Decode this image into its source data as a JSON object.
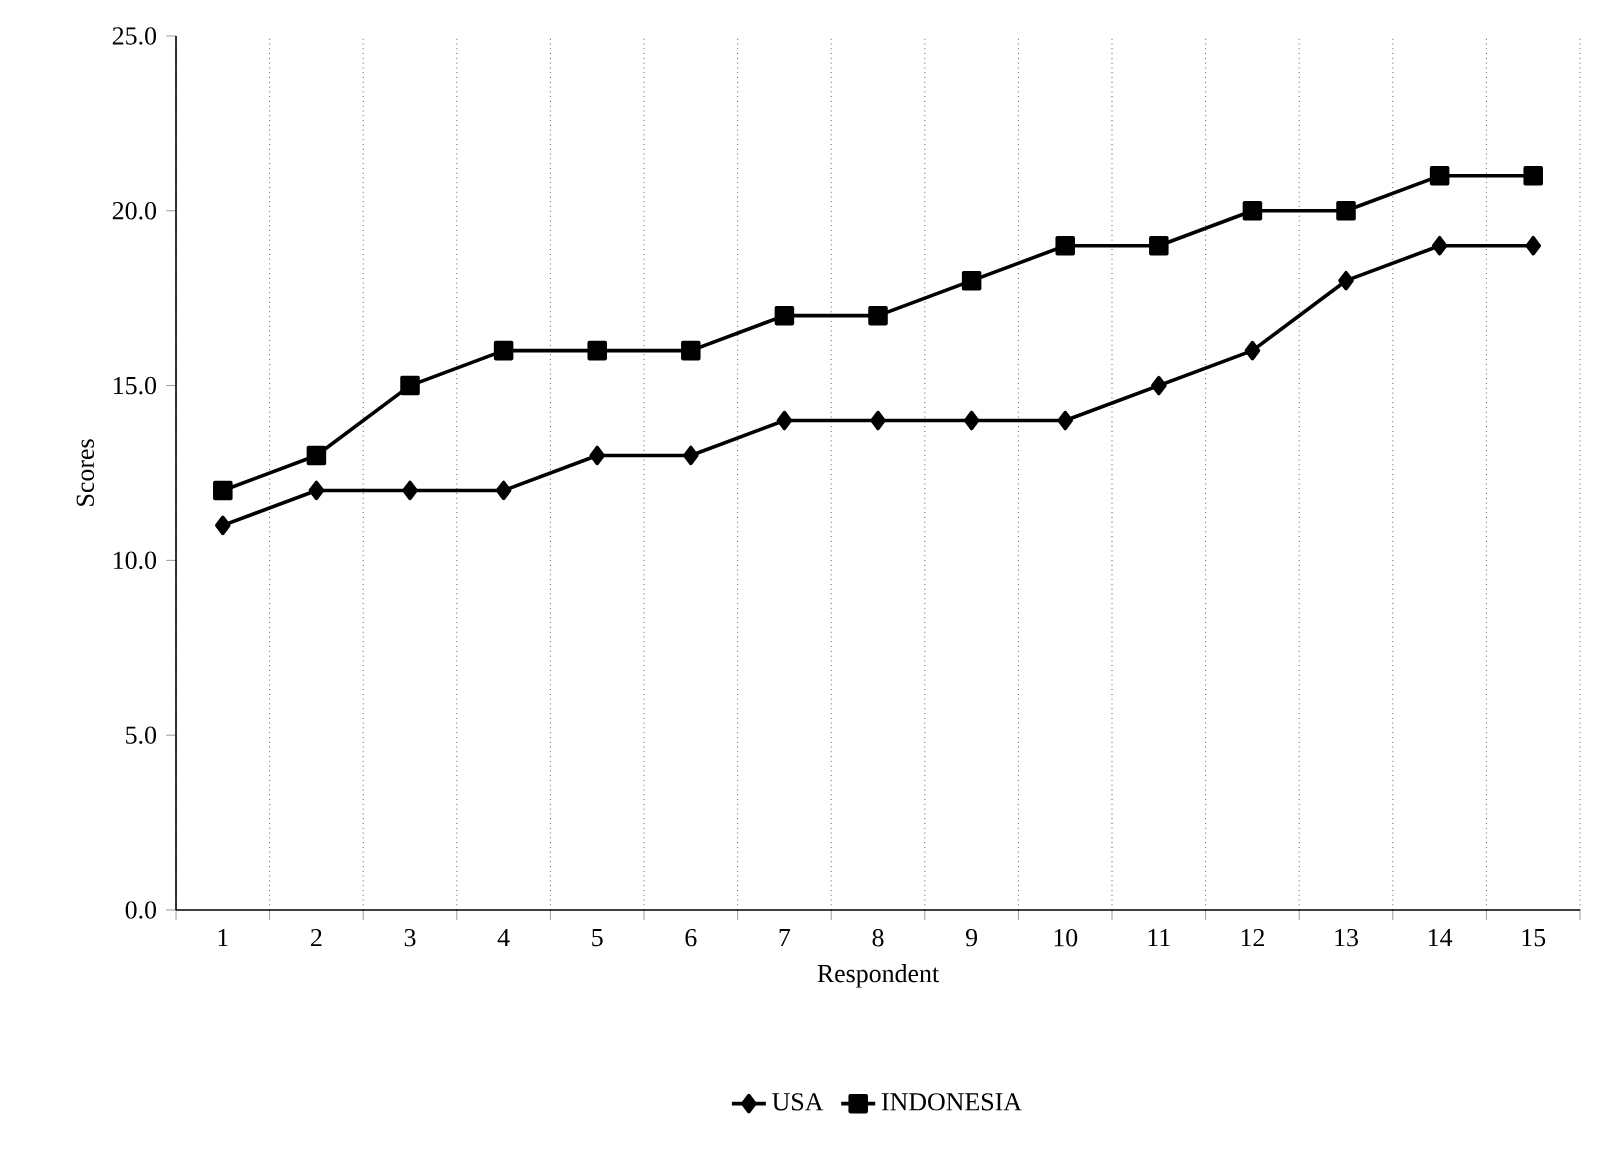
{
  "chart_data": {
    "type": "line",
    "xlabel": "Respondent",
    "ylabel": "Scores",
    "categories": [
      "1",
      "2",
      "3",
      "4",
      "5",
      "6",
      "7",
      "8",
      "9",
      "10",
      "11",
      "12",
      "13",
      "14",
      "15"
    ],
    "series": [
      {
        "name": "USA",
        "color": "#000000",
        "marker": "diamond",
        "values": [
          11,
          12,
          12,
          12,
          13,
          13,
          14,
          14,
          14,
          14,
          15,
          16,
          18,
          19,
          19
        ]
      },
      {
        "name": "INDONESIA",
        "color": "#000000",
        "marker": "square",
        "values": [
          12,
          13,
          15,
          16,
          16,
          16,
          17,
          17,
          18,
          19,
          19,
          20,
          20,
          21,
          21
        ]
      }
    ],
    "ylim": [
      0,
      25
    ],
    "yticks": [
      {
        "value": 0,
        "label": "0.0"
      },
      {
        "value": 5,
        "label": "5.0"
      },
      {
        "value": 10,
        "label": "10.0"
      },
      {
        "value": 15,
        "label": "15.0"
      },
      {
        "value": 20,
        "label": "20.0"
      },
      {
        "value": 25,
        "label": "25.0"
      }
    ],
    "grid": "x",
    "legend": "bottom",
    "line_style": "solid"
  }
}
